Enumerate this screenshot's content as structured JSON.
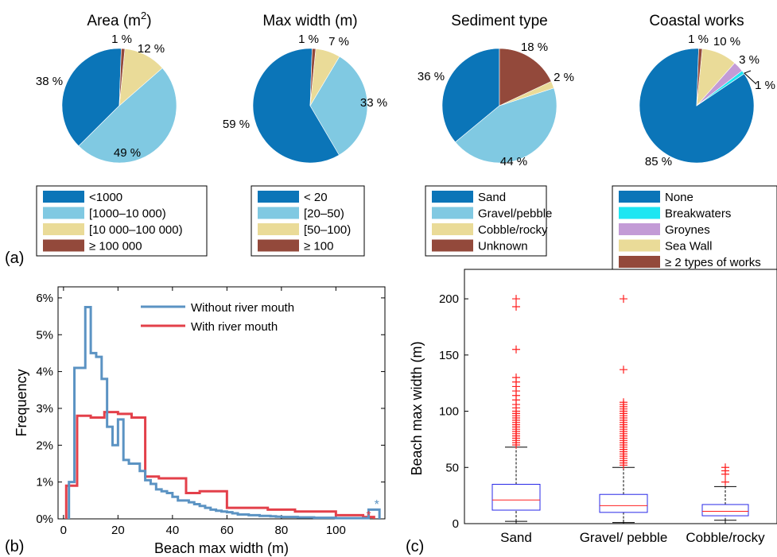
{
  "panel_labels": {
    "a": "(a)",
    "b": "(b)",
    "c": "(c)"
  },
  "colors": {
    "dark_blue": "#0b75b8",
    "light_blue": "#80c9e2",
    "sand": "#eadb98",
    "brown": "#93493b",
    "cyan": "#1de6f2",
    "purple": "#c39bd6",
    "line_blue": "#5b93c3",
    "line_red": "#e3404a",
    "box_blue": "#2828e8",
    "outlier_red": "#ff2020"
  },
  "chart_data": [
    {
      "type": "pie",
      "title": "Area (m²)",
      "title_main": "Area (m",
      "title_sup": "2",
      "title_end": ")",
      "slices": [
        {
          "label": "<1000",
          "value": 38,
          "text": "38 %",
          "color": "#0b75b8"
        },
        {
          "label": "[1000–10 000)",
          "value": 49,
          "text": "49 %",
          "color": "#80c9e2"
        },
        {
          "label": "[10 000–100 000)",
          "value": 12,
          "text": "12 %",
          "color": "#eadb98"
        },
        {
          "label": "≥ 100 000",
          "value": 1,
          "text": "1 %",
          "color": "#93493b"
        }
      ]
    },
    {
      "type": "pie",
      "title": "Max  width (m)",
      "slices": [
        {
          "label": "< 20",
          "value": 59,
          "text": "59 %",
          "color": "#0b75b8"
        },
        {
          "label": "[20–50)",
          "value": 33,
          "text": "33 %",
          "color": "#80c9e2"
        },
        {
          "label": "[50–100)",
          "value": 7,
          "text": "7 %",
          "color": "#eadb98"
        },
        {
          "label": "≥ 100",
          "value": 1,
          "text": "1 %",
          "color": "#93493b"
        }
      ]
    },
    {
      "type": "pie",
      "title": "Sediment type",
      "slices": [
        {
          "label": "Sand",
          "value": 36,
          "text": "36 %",
          "color": "#0b75b8"
        },
        {
          "label": "Gravel/pebble",
          "value": 44,
          "text": "44 %",
          "color": "#80c9e2"
        },
        {
          "label": "Cobble/rocky",
          "value": 2,
          "text": "2 %",
          "color": "#eadb98"
        },
        {
          "label": "Unknown",
          "value": 18,
          "text": "18 %",
          "color": "#93493b"
        }
      ]
    },
    {
      "type": "pie",
      "title": "Coastal works",
      "slices": [
        {
          "label": "None",
          "value": 85,
          "text": "85 %",
          "color": "#0b75b8"
        },
        {
          "label": "Breakwaters",
          "value": 1,
          "text": "1 %",
          "color": "#1de6f2"
        },
        {
          "label": "Groynes",
          "value": 3,
          "text": "3 %",
          "color": "#c39bd6"
        },
        {
          "label": "Sea Wall",
          "value": 10,
          "text": "10 %",
          "color": "#eadb98"
        },
        {
          "label": "≥ 2 types of works",
          "value": 1,
          "text": "1 %",
          "color": "#93493b"
        }
      ]
    },
    {
      "type": "line",
      "xlabel": "Beach max width  (m)",
      "ylabel": "Frequency",
      "xlim": [
        -2,
        118
      ],
      "ylim": [
        0,
        6.3
      ],
      "xticks": [
        0,
        20,
        40,
        60,
        80,
        100
      ],
      "yticks": [
        0,
        1,
        2,
        3,
        4,
        5,
        6
      ],
      "ytick_labels": [
        "0%",
        "1%",
        "2%",
        "3%",
        "4%",
        "5%",
        "6%"
      ],
      "series": [
        {
          "name": "Without river mouth",
          "color": "#5b93c3",
          "edges": [
            2,
            4,
            6,
            8,
            10,
            12,
            14,
            16,
            18,
            20,
            22,
            24,
            26,
            28,
            30,
            32,
            34,
            36,
            38,
            40,
            42,
            44,
            46,
            48,
            50,
            52,
            54,
            56,
            58,
            60,
            62,
            64,
            66,
            68,
            70,
            72,
            74,
            76,
            78,
            80,
            82,
            84,
            86,
            88,
            90,
            92,
            94,
            96,
            98,
            100,
            102,
            104,
            106,
            108,
            110,
            112,
            114,
            116
          ],
          "values": [
            1.0,
            4.1,
            4.1,
            5.75,
            4.5,
            4.4,
            3.8,
            2.5,
            2.0,
            2.7,
            1.6,
            1.5,
            1.5,
            1.3,
            1.05,
            0.95,
            0.8,
            0.75,
            0.7,
            0.6,
            0.5,
            0.5,
            0.45,
            0.4,
            0.35,
            0.3,
            0.25,
            0.22,
            0.2,
            0.18,
            0.15,
            0.12,
            0.12,
            0.1,
            0.1,
            0.08,
            0.08,
            0.07,
            0.06,
            0.05,
            0.05,
            0.05,
            0.04,
            0.04,
            0.04,
            0.03,
            0.03,
            0.03,
            0.03,
            0.02,
            0.02,
            0.02,
            0.02,
            0.02,
            0.02,
            0.25,
            0.25
          ]
        },
        {
          "name": "With river mouth",
          "color": "#e3404a",
          "edges": [
            1,
            5,
            10,
            15,
            20,
            25,
            30,
            35,
            40,
            45,
            50,
            55,
            60,
            65,
            70,
            75,
            80,
            85,
            90,
            95,
            100,
            105,
            110,
            114
          ],
          "values": [
            0.9,
            2.8,
            2.75,
            2.9,
            2.85,
            2.75,
            1.15,
            1.1,
            1.1,
            0.7,
            0.75,
            0.75,
            0.3,
            0.3,
            0.3,
            0.25,
            0.25,
            0.2,
            0.2,
            0.2,
            0.1,
            0.1,
            0.05
          ]
        }
      ],
      "markers": [
        {
          "symbol": "*",
          "x": 115,
          "y": 0.45,
          "color": "#5b93c3"
        },
        {
          "symbol": "*",
          "x": 112,
          "y": 0.15,
          "color": "#e3404a"
        }
      ]
    },
    {
      "type": "box",
      "ylabel": "Beach max width  (m)",
      "ylim": [
        0,
        205
      ],
      "yticks": [
        0,
        50,
        100,
        150,
        200
      ],
      "categories": [
        "Sand",
        "Gravel/ pebble",
        "Cobble/rocky"
      ],
      "boxes": [
        {
          "q1": 12,
          "median": 21,
          "q3": 35,
          "whisker_low": 2,
          "whisker_high": 68,
          "outliers": [
            70,
            72,
            74,
            76,
            78,
            80,
            82,
            84,
            86,
            88,
            90,
            92,
            94,
            96,
            98,
            100,
            103,
            106,
            110,
            114,
            118,
            122,
            126,
            130,
            155,
            193,
            200
          ]
        },
        {
          "q1": 10,
          "median": 16,
          "q3": 26,
          "whisker_low": 1,
          "whisker_high": 50,
          "outliers": [
            52,
            54,
            56,
            58,
            60,
            62,
            64,
            66,
            68,
            70,
            72,
            74,
            76,
            78,
            80,
            82,
            84,
            86,
            88,
            90,
            92,
            94,
            96,
            98,
            100,
            102,
            104,
            106,
            108,
            137,
            200
          ]
        },
        {
          "q1": 7,
          "median": 11,
          "q3": 17,
          "whisker_low": 3,
          "whisker_high": 33,
          "outliers": [
            37,
            44,
            47,
            50
          ]
        }
      ]
    }
  ]
}
